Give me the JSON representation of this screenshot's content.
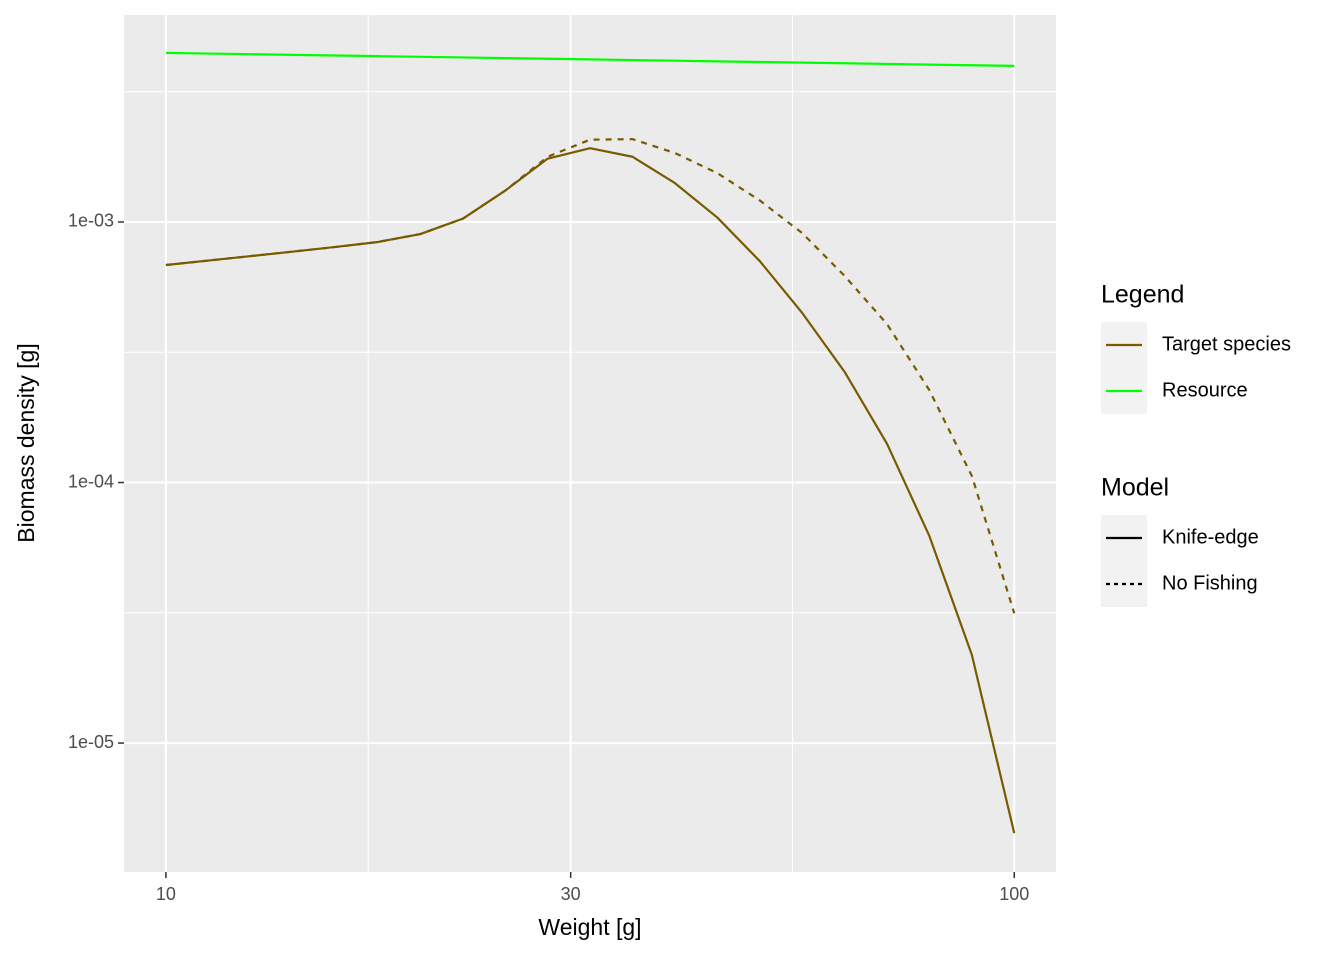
{
  "chart_data": {
    "type": "line",
    "x_label": "Weight [g]",
    "y_label": "Biomass density [g]",
    "xlog": true,
    "ylog": true,
    "grid": true,
    "xlim": [
      8.925,
      112.0
    ],
    "ylim": [
      3.2e-06,
      0.00623
    ],
    "xticks": [
      10,
      30,
      100
    ],
    "yticks": [
      {
        "value": 1e-05,
        "label": "1e-05"
      },
      {
        "value": 0.0001,
        "label": "1e-04"
      },
      {
        "value": 0.001,
        "label": "1e-03"
      }
    ],
    "x": [
      10,
      11.22,
      12.59,
      14.13,
      15.85,
      17.78,
      19.95,
      22.39,
      25.12,
      28.18,
      31.62,
      35.48,
      39.81,
      44.67,
      50.12,
      56.23,
      63.1,
      70.79,
      79.43,
      89.13,
      100
    ],
    "series": [
      {
        "name": "Resource",
        "model": "Knife-edge",
        "color": "#00ff00",
        "dash": "solid",
        "values": [
          0.004457,
          0.004431,
          0.004406,
          0.004381,
          0.004356,
          0.004331,
          0.004306,
          0.004281,
          0.004257,
          0.004232,
          0.004208,
          0.004184,
          0.00416,
          0.004136,
          0.004113,
          0.004089,
          0.004066,
          0.004043,
          0.004019,
          0.003996,
          0.003973
        ]
      },
      {
        "name": "Target species",
        "model": "No Fishing",
        "color": "#7a5a00",
        "dash": "dashed",
        "values": [
          0.000684,
          0.000711,
          0.00074,
          0.00077,
          0.000802,
          0.000838,
          0.000899,
          0.00103,
          0.00132,
          0.00178,
          0.00207,
          0.00208,
          0.00184,
          0.00154,
          0.00121,
          0.000907,
          0.000621,
          0.000406,
          0.000226,
          0.000106,
          3.15e-05
        ]
      },
      {
        "name": "Target species",
        "model": "Knife-edge",
        "color": "#7a5a00",
        "dash": "solid",
        "values": [
          0.000684,
          0.000711,
          0.00074,
          0.00077,
          0.000802,
          0.000838,
          0.000899,
          0.00103,
          0.00132,
          0.00175,
          0.00192,
          0.00178,
          0.00141,
          0.00104,
          0.000708,
          0.000448,
          0.000266,
          0.000141,
          6.23e-05,
          2.18e-05,
          4.51e-06
        ]
      }
    ],
    "legends": [
      {
        "title": "Legend",
        "entries": [
          {
            "label": "Target species",
            "color": "#7a5a00",
            "dash": "solid"
          },
          {
            "label": "Resource",
            "color": "#00ff00",
            "dash": "solid"
          }
        ]
      },
      {
        "title": "Model",
        "entries": [
          {
            "label": "Knife-edge",
            "color": "#000000",
            "dash": "solid"
          },
          {
            "label": "No Fishing",
            "color": "#000000",
            "dash": "dashed"
          }
        ]
      }
    ]
  }
}
